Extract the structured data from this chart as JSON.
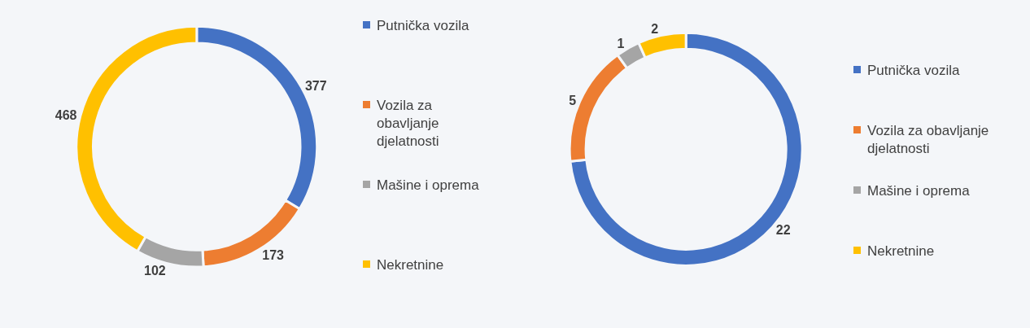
{
  "chart_data": [
    {
      "type": "donut",
      "categories": [
        "Putnička vozila",
        "Vozila za obavljanje djelatnosti",
        "Mašine i oprema",
        "Nekretnine"
      ],
      "values": [
        377,
        173,
        102,
        468
      ],
      "colors": [
        "#4472c4",
        "#ed7d31",
        "#a5a5a5",
        "#ffc000"
      ],
      "data_labels": true,
      "legend": "right"
    },
    {
      "type": "donut",
      "categories": [
        "Putnička vozila",
        "Vozila za obavljanje djelatnosti",
        "Mašine i oprema",
        "Nekretnine"
      ],
      "values": [
        22,
        5,
        1,
        2
      ],
      "colors": [
        "#4472c4",
        "#ed7d31",
        "#a5a5a5",
        "#ffc000"
      ],
      "data_labels": true,
      "legend": "right"
    }
  ]
}
